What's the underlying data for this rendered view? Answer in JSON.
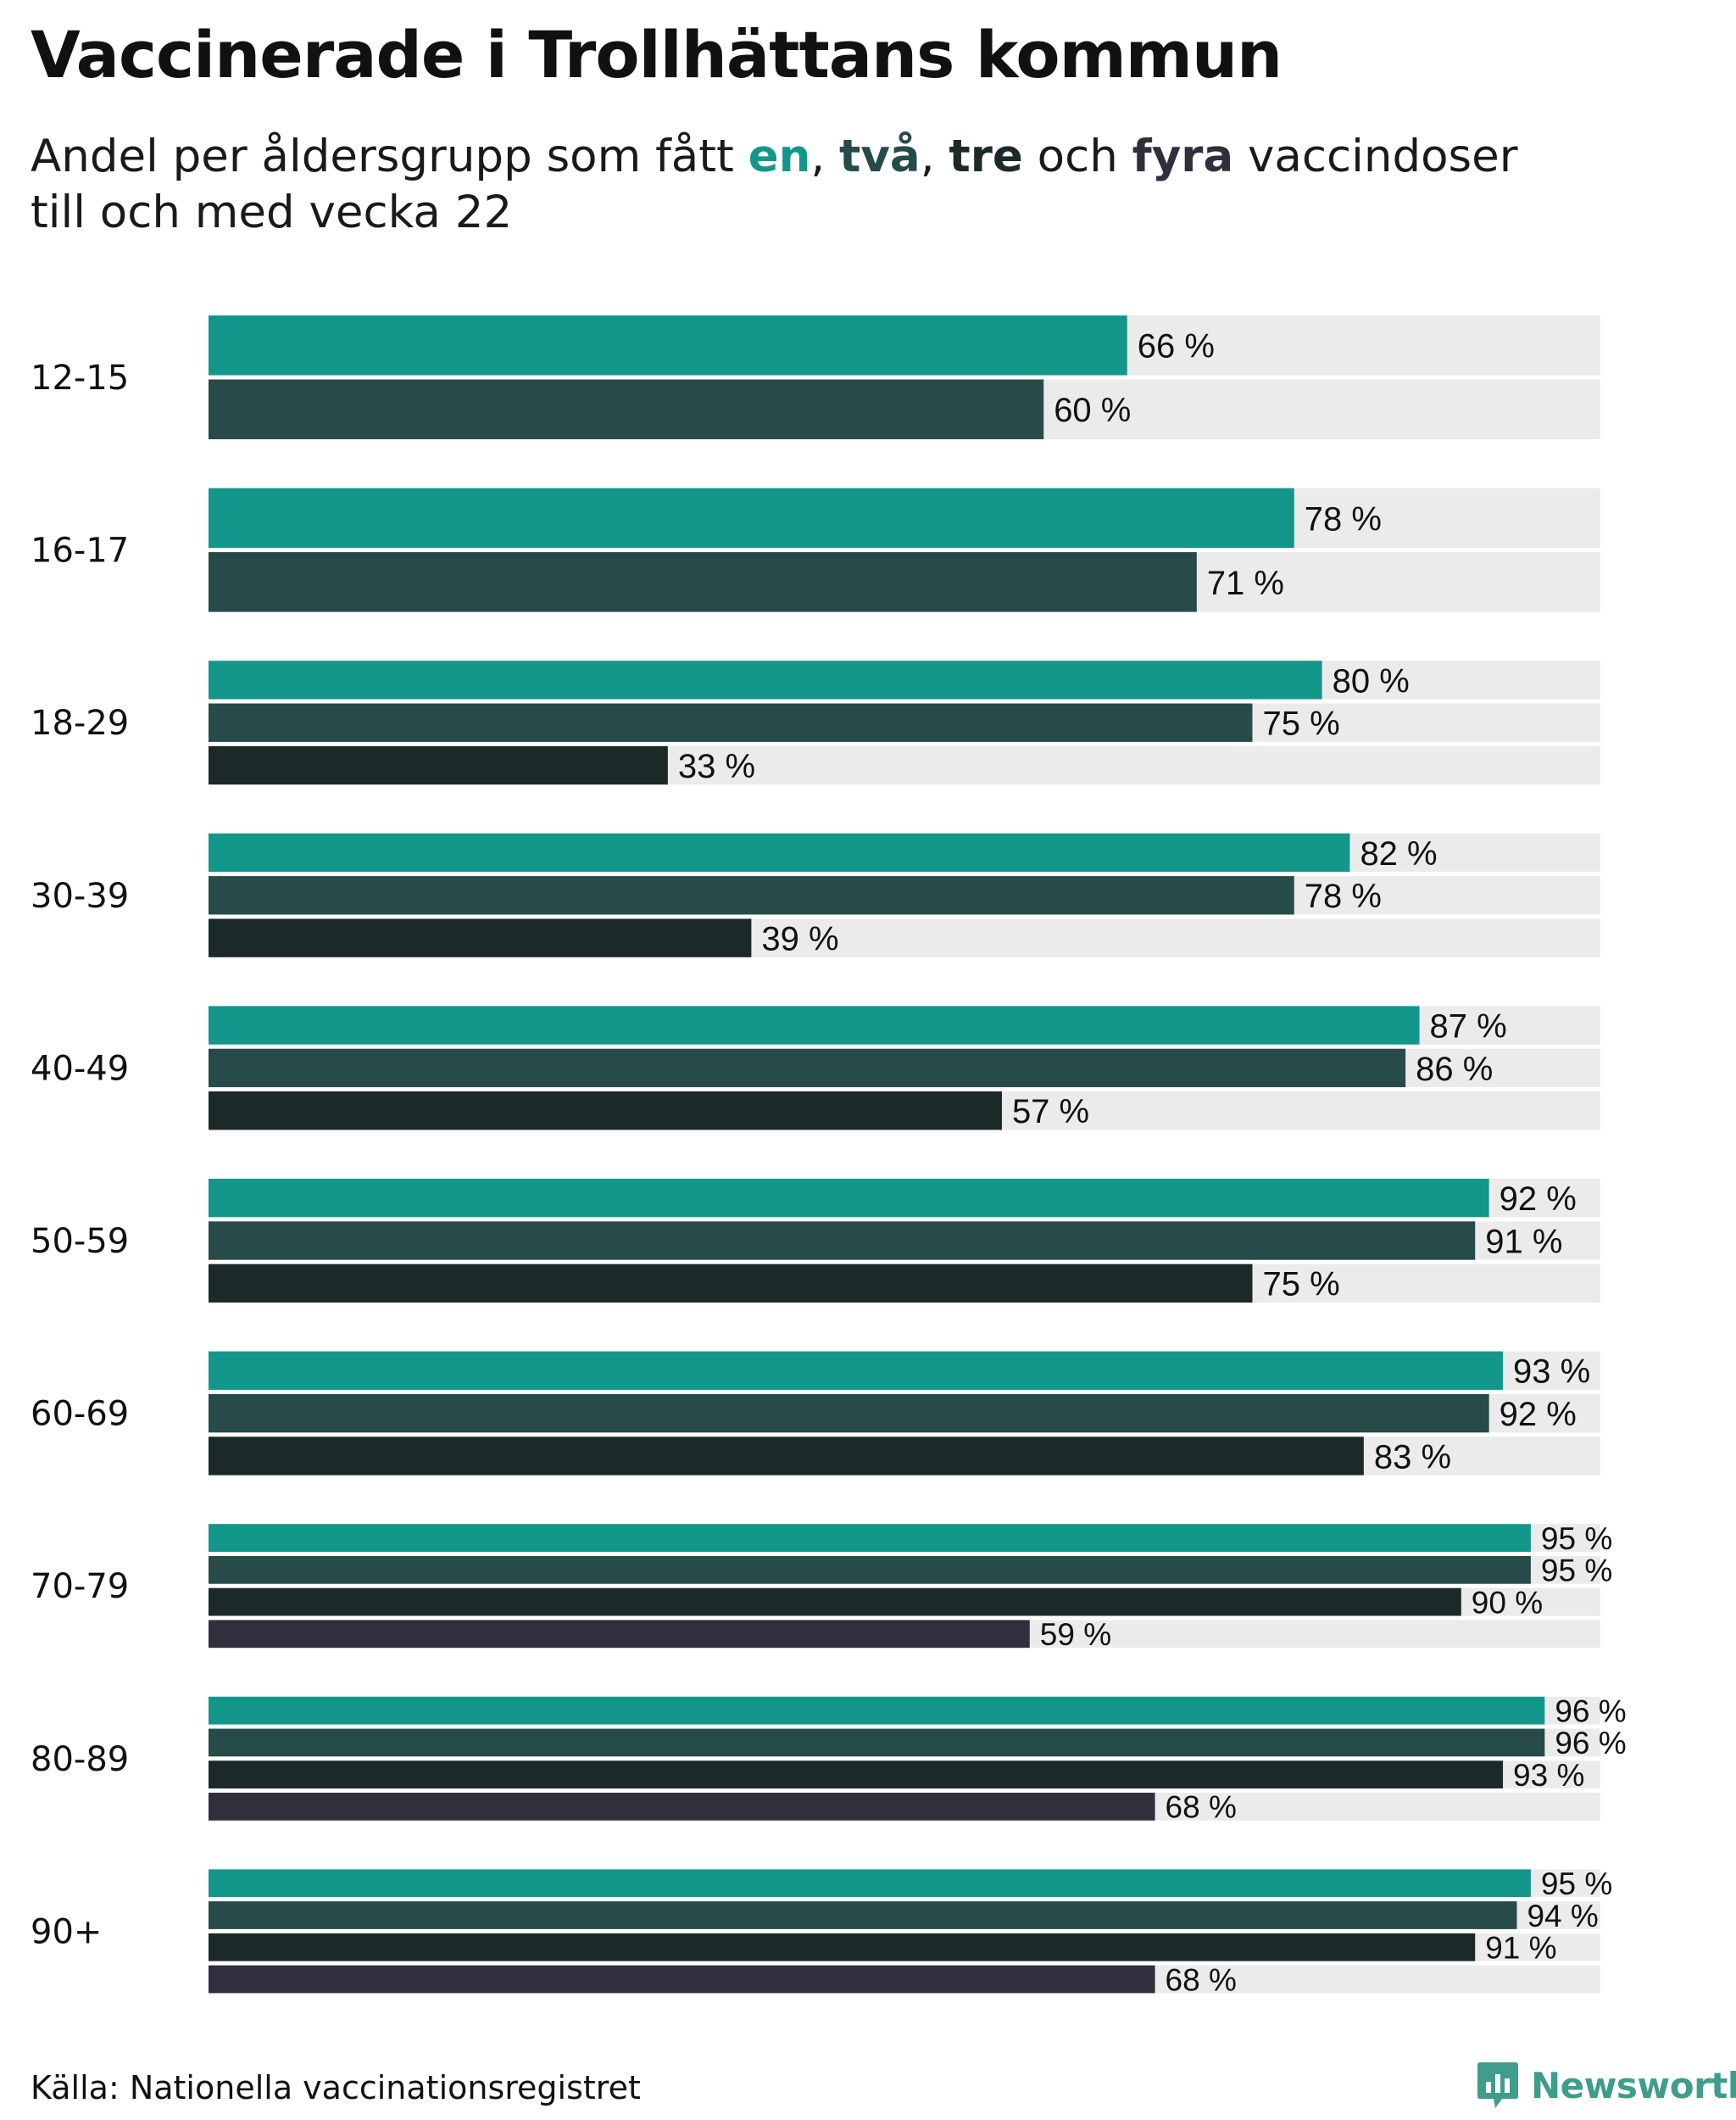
{
  "title": "Vaccinerade i Trollhättans kommun",
  "subtitle": {
    "prefix": "Andel per åldersgrupp som fått ",
    "dose1": "en",
    "sep1": ", ",
    "dose2": "två",
    "sep2": ", ",
    "dose3": "tre",
    "sep3": " och ",
    "dose4": "fyra",
    "line1_suffix": " vaccindoser",
    "line2": "till och med vecka 22"
  },
  "colors": {
    "dose1": "#13978a",
    "dose2": "#264b48",
    "dose3": "#1b2a28",
    "dose4": "#312f3d",
    "track": "#ebebeb"
  },
  "chart_data": {
    "type": "bar",
    "orientation": "horizontal",
    "unit": " %",
    "xlim": [
      0,
      100
    ],
    "categories": [
      "12-15",
      "16-17",
      "18-29",
      "30-39",
      "40-49",
      "50-59",
      "60-69",
      "70-79",
      "80-89",
      "90+"
    ],
    "series": [
      {
        "name": "en",
        "values": [
          66,
          78,
          80,
          82,
          87,
          92,
          93,
          95,
          96,
          95
        ]
      },
      {
        "name": "två",
        "values": [
          60,
          71,
          75,
          78,
          86,
          91,
          92,
          95,
          96,
          94
        ]
      },
      {
        "name": "tre",
        "values": [
          null,
          null,
          33,
          39,
          57,
          75,
          83,
          90,
          93,
          91
        ]
      },
      {
        "name": "fyra",
        "values": [
          null,
          null,
          null,
          null,
          null,
          null,
          null,
          59,
          68,
          68
        ]
      }
    ]
  },
  "source": "Källa: Nationella vaccinationsregistret",
  "brand": {
    "name": "Newsworthy",
    "logo_icon": "newsworthy-logo-icon"
  }
}
